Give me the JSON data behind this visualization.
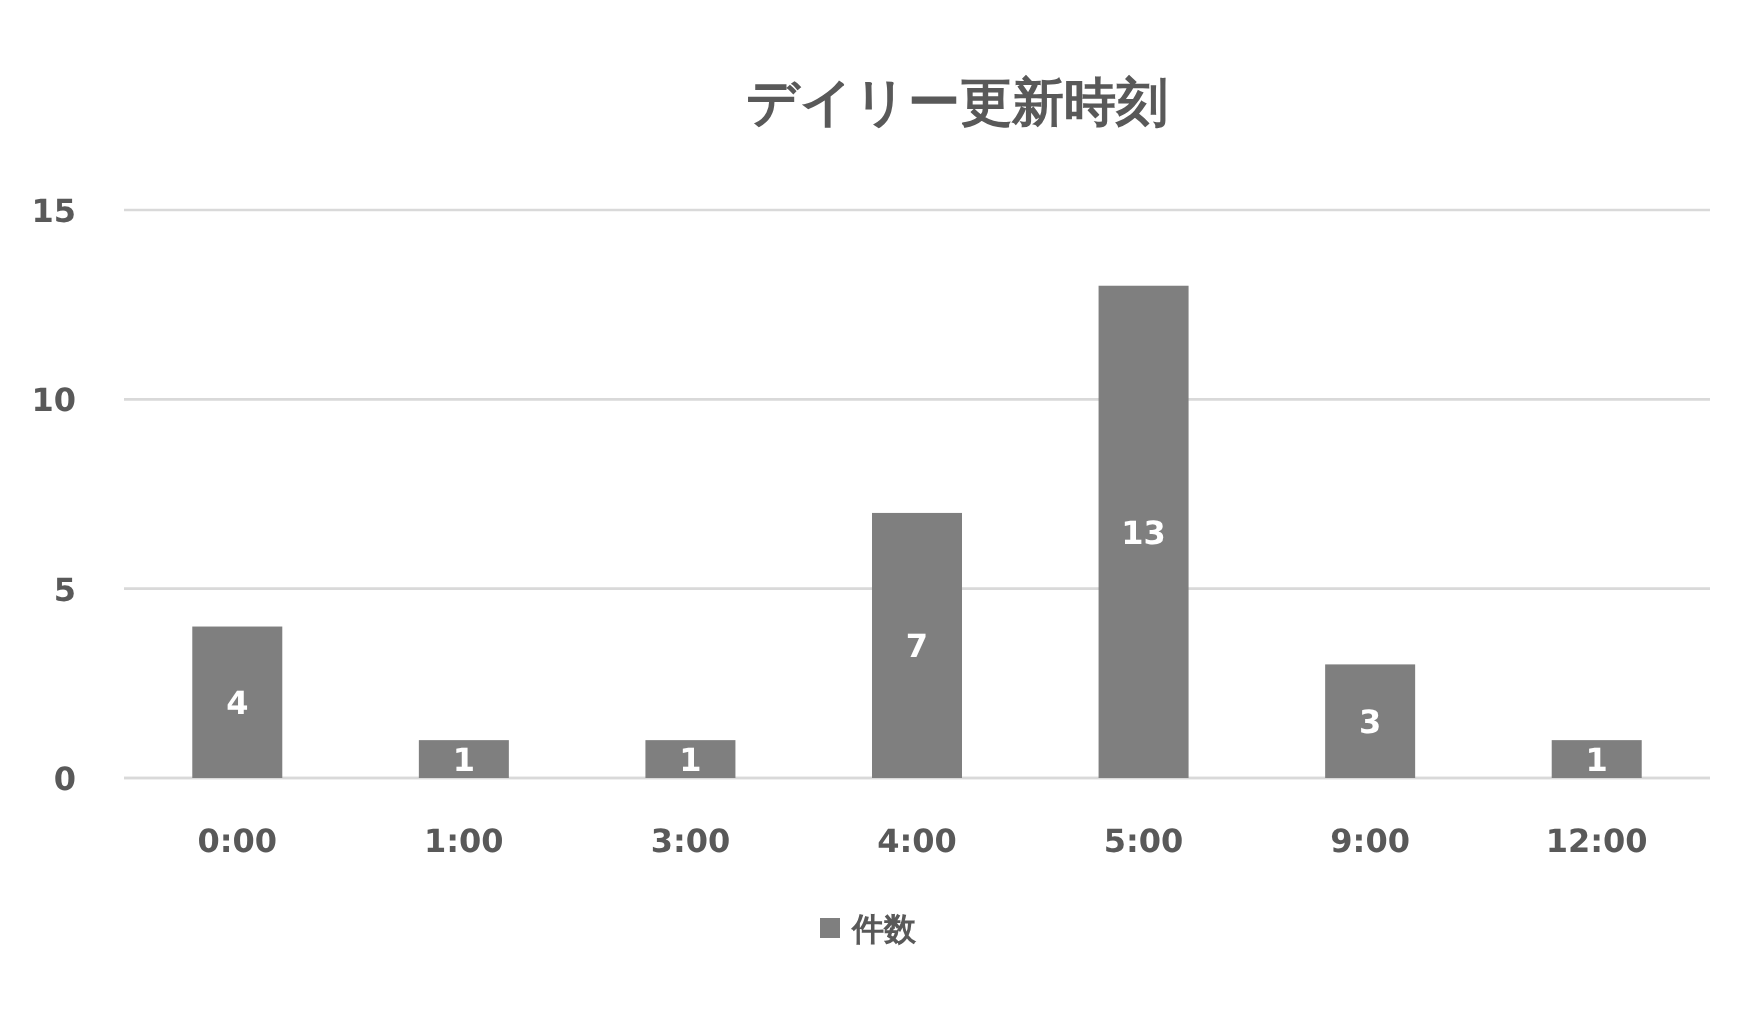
{
  "chart_data": {
    "type": "bar",
    "title": "デイリー更新時刻",
    "categories": [
      "0:00",
      "1:00",
      "3:00",
      "4:00",
      "5:00",
      "9:00",
      "12:00"
    ],
    "series": [
      {
        "name": "件数",
        "color": "#7f7f7f",
        "values": [
          4,
          1,
          1,
          7,
          13,
          3,
          1
        ]
      }
    ],
    "ylim": [
      0,
      15
    ],
    "yticks": [
      0,
      5,
      10,
      15
    ],
    "grid": "y",
    "legend": "bottom",
    "data_labels": true
  }
}
